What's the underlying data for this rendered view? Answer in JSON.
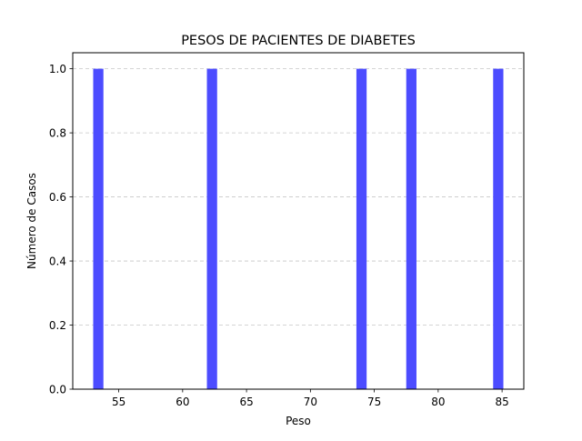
{
  "chart_data": {
    "type": "bar",
    "title": "PESOS DE PACIENTES DE DIABETES",
    "xlabel": "Peso",
    "ylabel": "Número de Casos",
    "bars": [
      {
        "x_start": 53.0,
        "x_end": 53.8,
        "value": 1.0
      },
      {
        "x_start": 61.9,
        "x_end": 62.7,
        "value": 1.0
      },
      {
        "x_start": 73.6,
        "x_end": 74.4,
        "value": 1.0
      },
      {
        "x_start": 77.5,
        "x_end": 78.3,
        "value": 1.0
      },
      {
        "x_start": 84.3,
        "x_end": 85.1,
        "value": 1.0
      }
    ],
    "xlim": [
      51.4,
      86.7
    ],
    "ylim": [
      0.0,
      1.05
    ],
    "xticks": [
      "55",
      "60",
      "65",
      "70",
      "75",
      "80",
      "85"
    ],
    "yticks": [
      "0.0",
      "0.2",
      "0.4",
      "0.6",
      "0.8",
      "1.0"
    ],
    "grid": "y-dashed",
    "bar_color": "#4c4cff"
  }
}
